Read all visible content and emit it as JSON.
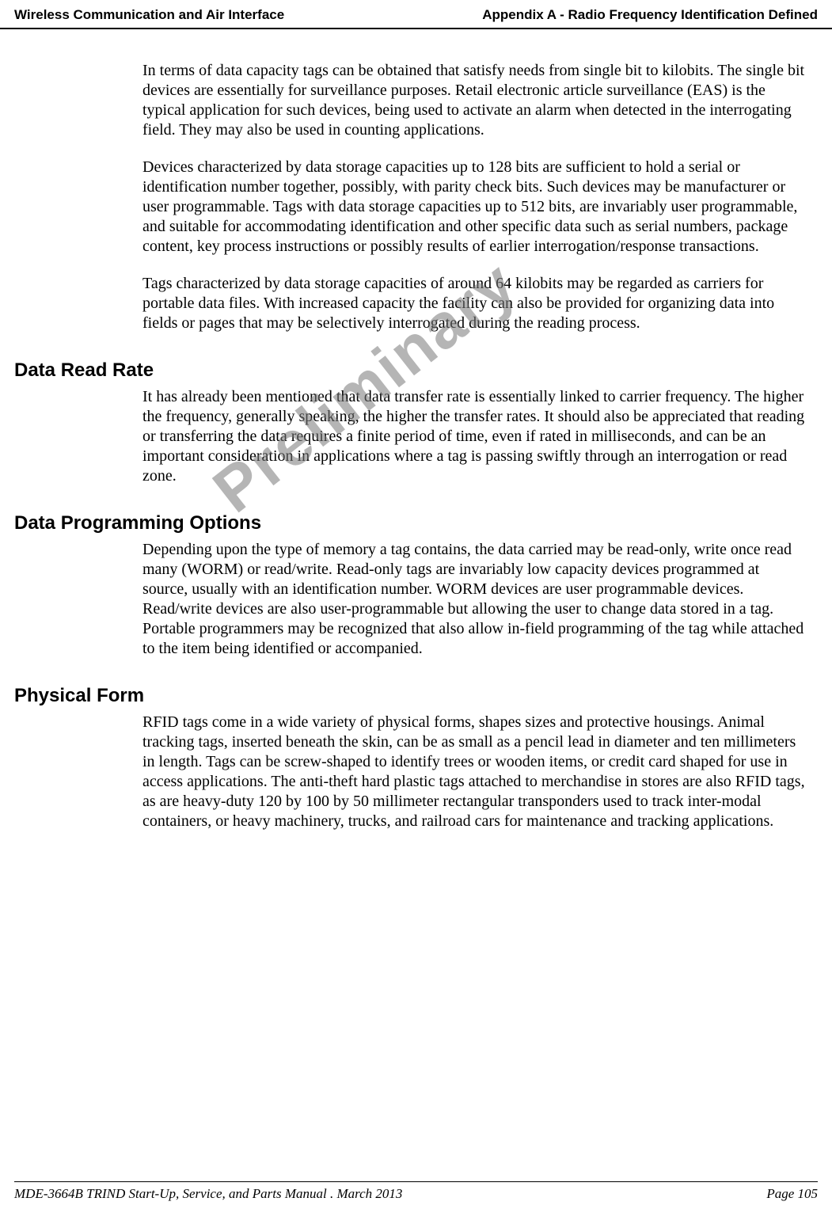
{
  "header": {
    "left": "Wireless Communication and Air Interface",
    "right": "Appendix A - Radio Frequency Identification Defined"
  },
  "watermark": "Preliminary",
  "paragraphs": {
    "p1": "In terms of data capacity tags can be obtained that satisfy needs from single bit to kilobits. The single bit devices are essentially for surveillance purposes. Retail electronic article surveillance (EAS) is the typical application for such devices, being used to activate an alarm when detected in the interrogating field. They may also be used in counting applications.",
    "p2": "Devices characterized by data storage capacities up to 128 bits are sufficient to hold a serial or identification number together, possibly, with parity check bits. Such devices may be manufacturer or user programmable. Tags with data storage capacities up to 512 bits, are invariably user programmable, and suitable for accommodating identification and other specific data such as serial numbers, package content, key process instructions or possibly results of earlier interrogation/response transactions.",
    "p3": "Tags characterized by data storage capacities of around 64 kilobits may be regarded as carriers for portable data files. With increased capacity the facility can also be provided for organizing data into fields or pages that may be selectively interrogated during the reading process."
  },
  "sections": {
    "dataReadRate": {
      "heading": "Data Read Rate",
      "body": "It has already been mentioned that data transfer rate is essentially linked to carrier frequency. The higher the frequency, generally speaking, the higher the transfer rates. It should also be appreciated that reading or transferring the data requires a finite period of time, even if rated in milliseconds, and can be an important consideration in applications where a tag is passing swiftly through an interrogation or read zone."
    },
    "dataProgramming": {
      "heading": "Data Programming Options",
      "body": "Depending upon the type of memory a tag contains, the data carried may be read-only, write once read many (WORM) or read/write. Read-only tags are invariably low capacity devices programmed at source, usually with an identification number. WORM devices are user programmable devices. Read/write devices are also user-programmable but allowing the user to change data stored in a tag. Portable programmers may be recognized that also allow in-field programming of the tag while attached to the item being identified or accompanied."
    },
    "physicalForm": {
      "heading": "Physical Form",
      "body": "RFID tags come in a wide variety of physical forms, shapes sizes and protective housings. Animal tracking tags, inserted beneath the skin, can be as small as a pencil lead in diameter and ten millimeters in length. Tags can be screw-shaped to identify trees or wooden items, or credit card shaped for use in access applications. The anti-theft hard plastic tags attached to merchandise in stores are also RFID tags, as are heavy-duty 120 by 100 by 50 millimeter rectangular transponders used to track inter-modal containers, or heavy machinery, trucks, and railroad cars for maintenance and tracking applications."
    }
  },
  "footer": {
    "left": "MDE-3664B TRIND Start-Up, Service, and Parts Manual . March 2013",
    "right": "Page 105"
  }
}
